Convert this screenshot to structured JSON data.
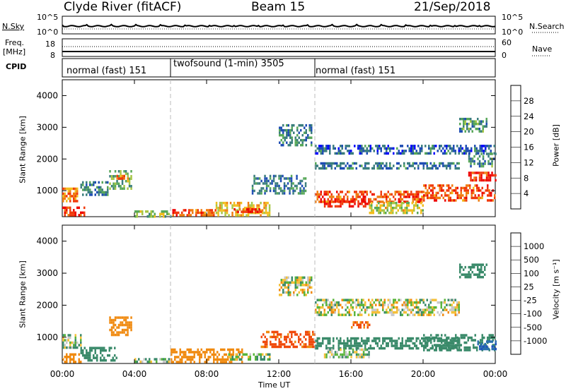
{
  "header": {
    "title": "Clyde River (fitACF)",
    "beam": "Beam 15",
    "date": "21/Sep/2018"
  },
  "noise_panel": {
    "left_label": "N.Sky",
    "right_label": "N.Search",
    "left_ticks": [
      "10^5",
      "10^0"
    ],
    "right_ticks": [
      "10^5",
      "10^0"
    ]
  },
  "freq_panel": {
    "left_label": "Freq.",
    "left_unit": "[MHz]",
    "left_ticks": [
      "18",
      "8"
    ],
    "right_label": "Nave",
    "right_ticks": [
      "60",
      "0"
    ]
  },
  "cpid_panel": {
    "label": "CPID",
    "modes": [
      {
        "label": "normal (fast) 151",
        "start_hour": 0
      },
      {
        "label": "twofsound (1-min) 3505",
        "start_hour": 6
      },
      {
        "label": "normal (fast) 151",
        "start_hour": 14
      }
    ]
  },
  "power_panel": {
    "ylabel": "Slant Range [km]",
    "colorbar_label": "Power [dB]",
    "colorbar_ticks": [
      "28",
      "24",
      "20",
      "16",
      "12",
      "8",
      "4"
    ],
    "colorbar_colors": [
      "#0000ff",
      "#1e4db3",
      "#3a7d7d",
      "#58a858",
      "#a7c646",
      "#f2bd1c",
      "#f07d10",
      "#f03a0c",
      "#ee0000"
    ]
  },
  "velocity_panel": {
    "ylabel": "Slant Range [km]",
    "colorbar_label": "Velocity [m s⁻¹]",
    "colorbar_ticks": [
      "1000",
      "500",
      "100",
      "25",
      "-25",
      "-100",
      "-500",
      "-1000"
    ],
    "colorbar_colors": [
      "#1f4fc0",
      "#2a6fae",
      "#3a8a6a",
      "#58b43a",
      "#c8c8c8",
      "#f5c038",
      "#f08a10",
      "#f04a0c",
      "#ee0000"
    ]
  },
  "axes": {
    "xlabel": "Time UT",
    "x_ticks": [
      "00:00",
      "04:00",
      "08:00",
      "12:00",
      "16:00",
      "20:00",
      "00:00"
    ],
    "y_ticks": [
      "4000",
      "3000",
      "2000",
      "1000"
    ]
  },
  "chart_data": [
    {
      "type": "heatmap",
      "title": "Power",
      "ylabel": "Slant Range [km]",
      "xlabel": "Time UT",
      "xlim": [
        0,
        24
      ],
      "ylim": [
        180,
        4500
      ],
      "colorbar": {
        "label": "Power [dB]",
        "range": [
          0,
          30
        ]
      },
      "regions": [
        {
          "t": [
            0.0,
            1.2
          ],
          "r": [
            200,
            500
          ],
          "value": 26
        },
        {
          "t": [
            0.0,
            0.8
          ],
          "r": [
            700,
            1100
          ],
          "value": 22
        },
        {
          "t": [
            1.0,
            2.5
          ],
          "r": [
            900,
            1300
          ],
          "value": 8
        },
        {
          "t": [
            2.6,
            3.8
          ],
          "r": [
            1100,
            1650
          ],
          "value": 12
        },
        {
          "t": [
            3.0,
            3.6
          ],
          "r": [
            1300,
            1500
          ],
          "value": 20
        },
        {
          "t": [
            4.0,
            6.0
          ],
          "r": [
            200,
            380
          ],
          "value": 14
        },
        {
          "t": [
            6.0,
            8.5
          ],
          "r": [
            200,
            420
          ],
          "value": 24
        },
        {
          "t": [
            8.5,
            11.5
          ],
          "r": [
            250,
            650
          ],
          "value": 18
        },
        {
          "t": [
            9.5,
            11.0
          ],
          "r": [
            300,
            450
          ],
          "value": 26
        },
        {
          "t": [
            10.5,
            13.5
          ],
          "r": [
            900,
            1500
          ],
          "value": 8
        },
        {
          "t": [
            12.0,
            13.8
          ],
          "r": [
            2400,
            3100
          ],
          "value": 8
        },
        {
          "t": [
            14.0,
            20.0
          ],
          "r": [
            650,
            1000
          ],
          "value": 24
        },
        {
          "t": [
            14.5,
            17.0
          ],
          "r": [
            500,
            700
          ],
          "value": 28
        },
        {
          "t": [
            14.0,
            22.0
          ],
          "r": [
            1700,
            1900
          ],
          "value": 8
        },
        {
          "t": [
            14.0,
            24.0
          ],
          "r": [
            2200,
            2450
          ],
          "value": 6
        },
        {
          "t": [
            17.0,
            20.0
          ],
          "r": [
            300,
            650
          ],
          "value": 16
        },
        {
          "t": [
            20.0,
            24.0
          ],
          "r": [
            700,
            1200
          ],
          "value": 24
        },
        {
          "t": [
            22.5,
            24.0
          ],
          "r": [
            1300,
            1600
          ],
          "value": 26
        },
        {
          "t": [
            22.5,
            24.0
          ],
          "r": [
            1800,
            2200
          ],
          "value": 10
        },
        {
          "t": [
            22.0,
            23.5
          ],
          "r": [
            2900,
            3300
          ],
          "value": 10
        }
      ]
    },
    {
      "type": "heatmap",
      "title": "Velocity",
      "ylabel": "Slant Range [km]",
      "xlabel": "Time UT",
      "xlim": [
        0,
        24
      ],
      "ylim": [
        180,
        4500
      ],
      "colorbar": {
        "label": "Velocity [m s⁻¹]",
        "range": [
          -1000,
          1000
        ]
      },
      "regions": [
        {
          "t": [
            0.0,
            1.0
          ],
          "r": [
            200,
            500
          ],
          "value": -300
        },
        {
          "t": [
            0.0,
            1.0
          ],
          "r": [
            650,
            1100
          ],
          "value": 60
        },
        {
          "t": [
            1.0,
            3.0
          ],
          "r": [
            250,
            700
          ],
          "value": 300
        },
        {
          "t": [
            2.6,
            3.8
          ],
          "r": [
            1100,
            1650
          ],
          "value": -300
        },
        {
          "t": [
            4.0,
            6.0
          ],
          "r": [
            200,
            350
          ],
          "value": 60
        },
        {
          "t": [
            6.0,
            10.0
          ],
          "r": [
            250,
            650
          ],
          "value": -300
        },
        {
          "t": [
            9.0,
            11.5
          ],
          "r": [
            300,
            500
          ],
          "value": 60
        },
        {
          "t": [
            11.0,
            14.0
          ],
          "r": [
            700,
            1200
          ],
          "value": -600
        },
        {
          "t": [
            12.0,
            13.8
          ],
          "r": [
            2300,
            2900
          ],
          "value": 0
        },
        {
          "t": [
            14.0,
            22.0
          ],
          "r": [
            650,
            1000
          ],
          "value": 300
        },
        {
          "t": [
            14.5,
            17.0
          ],
          "r": [
            400,
            650
          ],
          "value": 60
        },
        {
          "t": [
            14.0,
            22.0
          ],
          "r": [
            1700,
            2200
          ],
          "value": 0
        },
        {
          "t": [
            16.0,
            17.0
          ],
          "r": [
            1300,
            1500
          ],
          "value": -600
        },
        {
          "t": [
            20.0,
            24.0
          ],
          "r": [
            600,
            1100
          ],
          "value": 300
        },
        {
          "t": [
            23.0,
            24.0
          ],
          "r": [
            650,
            900
          ],
          "value": 900
        },
        {
          "t": [
            22.0,
            23.5
          ],
          "r": [
            2900,
            3300
          ],
          "value": 300
        }
      ]
    }
  ]
}
